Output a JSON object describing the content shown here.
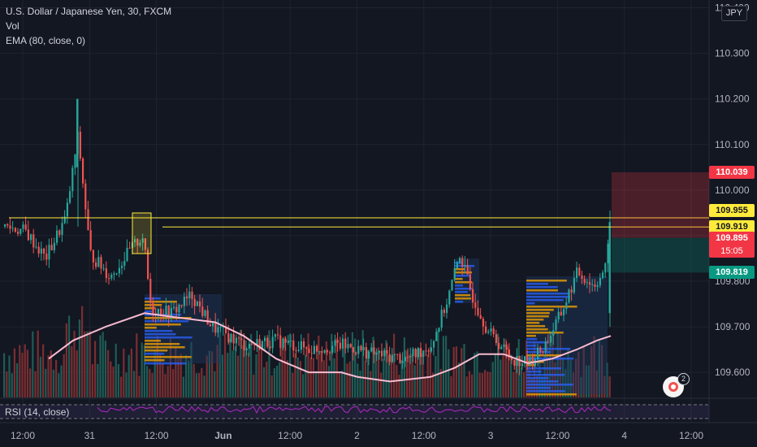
{
  "legend": {
    "symbol": "U.S. Dollar / Japanese Yen, 30, FXCM",
    "vol": "Vol",
    "ema": "EMA (80, close, 0)",
    "rsi": "RSI (14, close)"
  },
  "currency_button": "JPY",
  "colors": {
    "up": "#26a69a",
    "down": "#ef5350",
    "ema": "#f8bbd0",
    "rsi": "#9c27b0",
    "line": "#ffeb3b"
  },
  "chart_data": {
    "type": "candlestick",
    "symbol": "U.S. Dollar / Japanese Yen",
    "interval": "30",
    "yaxis": {
      "ticks": [
        110.4,
        110.3,
        110.2,
        110.1,
        110.0,
        109.9,
        109.8,
        109.7,
        109.6
      ],
      "ylim": [
        109.545,
        110.417
      ]
    },
    "xaxis": {
      "ticks": [
        "12:00",
        "31",
        "12:00",
        "Jun",
        "12:00",
        "2",
        "12:00",
        "3",
        "12:00",
        "4",
        "12:00"
      ]
    },
    "price_labels": [
      {
        "value": "110.039",
        "color": "#f23645"
      },
      {
        "value": "109.955",
        "color": "#ffeb3b"
      },
      {
        "value": "109.919",
        "color": "#787b86"
      },
      {
        "value": "109.919",
        "color": "#ffeb3b"
      },
      {
        "value": "109.895",
        "color": "#f23645",
        "countdown": "15:05"
      },
      {
        "value": "109.819",
        "color": "#089981"
      }
    ],
    "horizontal_lines": [
      109.939,
      109.919
    ],
    "position": {
      "entry": 109.895,
      "stop": 110.039,
      "target": 109.819
    },
    "indicators": [
      "Vol",
      "EMA (80, close, 0)",
      "RSI (14, close)"
    ]
  },
  "fab_badge": "2"
}
